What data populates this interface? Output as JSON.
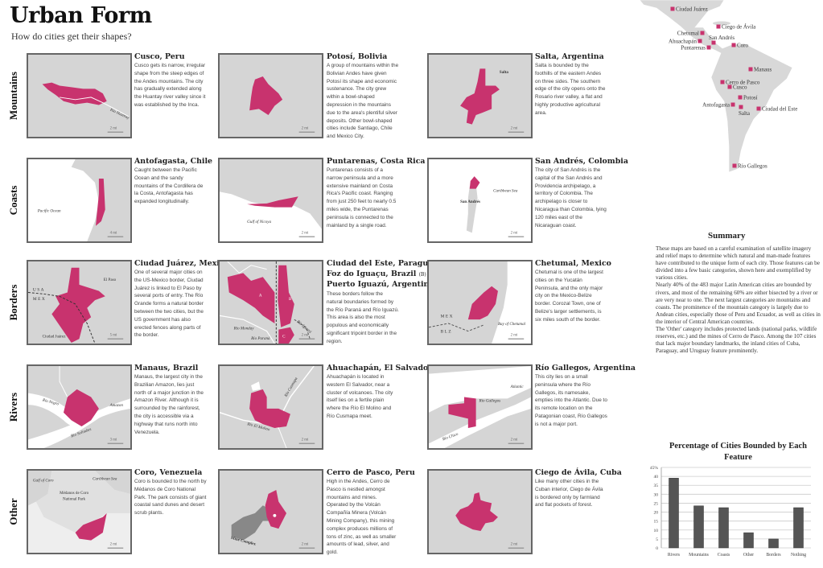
{
  "title": "Urban Form",
  "subtitle": "How do cities get their shapes?",
  "categories": [
    "Mountains",
    "Coasts",
    "Borders",
    "Rivers",
    "Other"
  ],
  "colors": {
    "city": "#c8336e",
    "land": "#d5d5d5",
    "water": "#ffffff",
    "frame": "#666666",
    "bar": "#555555"
  },
  "cities": [
    {
      "name": "Cusco, Peru",
      "text": "Cusco gets its narrow, irregular shape from the steep edges of the Andes mountains.  The city has gradually extended along the Huantay river valley since it was established by the Inca.",
      "labels": [
        "Río Huantay"
      ],
      "scale": "2 mi"
    },
    {
      "name": "Potosí, Bolivia",
      "text": "A group of mountains within the Bolivian Andes have given Potosí its shape and economic sustenance.  The city grew within a bowl-shaped depression in the mountains due to the area's plentiful silver deposits. Other bowl-shaped cities include Santiago, Chile and Mexico City.",
      "labels": [],
      "scale": "2 mi"
    },
    {
      "name": "Salta, Argentina",
      "text": "Salta is bounded by the foothills of the eastern Andes on three sides.  The southern edge of the city opens onto the Rosario river valley, a flat and highly productive agricultural area.",
      "labels": [
        "Salta"
      ],
      "scale": "2 mi"
    },
    {
      "name": "Antofagasta, Chile",
      "text": "Caught between the Pacific Ocean and the sandy mountains of the Cordillera de la Costa, Antofagasta has expanded longitudinally.",
      "labels": [
        "Pacific Ocean"
      ],
      "scale": "4 mi"
    },
    {
      "name": "Puntarenas, Costa Rica",
      "text": "Puntarenas consists of a narrow peninsula and a more extensive mainland on Costa Rica's Pacific coast.  Ranging from just 250 feet to nearly 0.5 miles wide, the Puntarenas peninsula is connected to the mainland by a single road.",
      "labels": [
        "Gulf of Nicoya"
      ],
      "scale": "2 mi"
    },
    {
      "name": "San Andrés, Colombia",
      "text": "The city of San Andrés is the capital of the San Andrés and Providencia archipelago, a territory of Colombia.  The archipelago is closer to Nicaragua than Colombia, lying 120 miles east of the Nicaraguan coast.",
      "labels": [
        "Caribbean Sea",
        "San Andrés"
      ],
      "scale": "2 mi"
    },
    {
      "name": "Ciudad Juárez, Mexico",
      "text": "One of several major cities on the US-Mexico border, Ciudad Juárez is linked to El Paso by several ports of entry.  The Río Grande forms a natural border between the two cities, but the US government has also erected fences along parts of the border.",
      "labels": [
        "El Paso",
        "USA",
        "MEX",
        "Ciudad Juárez"
      ],
      "scale": "5 mi"
    },
    {
      "name": "Ciudad del Este, Paraguay",
      "tag": "(A)",
      "name2": "Foz do Iguaçu, Brazil",
      "tag2": "(B)",
      "name3": "Puerto Iguazú, Argentina",
      "tag3": "(C)",
      "text": "These borders follow the natural boundaries formed by the Río Paraná and Río Iguazú.  This area is also the most populous and economically significant tripoint border in the region.",
      "labels": [
        "A",
        "B",
        "C",
        "Río Monday",
        "Río Paraná",
        "Río Iguazú"
      ],
      "scale": "2 mi"
    },
    {
      "name": "Chetumal, Mexico",
      "text": "Chetumal is one of the largest cities on the Yucatán Peninsula, and the only major city on the Mexico-Belize border. Corozal Town, one of Belize's larger settlements, is six miles south of the border.",
      "labels": [
        "MEX",
        "BLZ",
        "Bay of Chetumal"
      ],
      "scale": "2 mi"
    },
    {
      "name": "Manaus, Brazil",
      "text": "Manaus, the largest city in the Brazilian Amazon, lies just north of a major junction in the Amazon River.  Although it is surrounded by the rainforest, the city is accessible via a highway that runs north into Venezuela.",
      "labels": [
        "Río Negro",
        "Amazon",
        "Río Solimões"
      ],
      "scale": "3 mi"
    },
    {
      "name": "Ahuachapán, El Salvador",
      "text": "Ahuachapán is located in western El Salvador, near a cluster of volcanoes. The city itself lies on a fertile plain where the Río El Molino and Río Cusmapa meet.",
      "labels": [
        "Río Cusmapa",
        "Río El Molino"
      ],
      "scale": "2 mi"
    },
    {
      "name": "Río Gallegos, Argentina",
      "text": "This city lies on a small peninsula where the Río Gallegos, its namesake, empties into the Atlantic. Due to its remote location on the Patagonian coast, Río Gallegos is not a major port.",
      "labels": [
        "Río Gallegos",
        "Atlantic",
        "Río Chico"
      ],
      "scale": "2 mi"
    },
    {
      "name": "Coro, Venezuela",
      "text": "Coro is bounded to the north by Médanos de Coro National Park.  The park consists of giant coastal sand dunes and desert scrub plants.",
      "labels": [
        "Gulf of Coro",
        "Caribbean Sea",
        "Médanos de Coro",
        "National Park"
      ],
      "scale": "2 mi"
    },
    {
      "name": "Cerro de Pasco, Peru",
      "text": "High in the Andes, Cerro de Pasco is nestled amongst mountains and mines.  Operated by the Volcán Compañía Minera (Volcán Mining Company), this mining complex produces millions of tons of zinc, as well as smaller amounts of lead, silver, and gold.",
      "labels": [
        "Mine Complex"
      ],
      "scale": "2 mi"
    },
    {
      "name": "Ciego de Ávila, Cuba",
      "text": "Like many other cities in the Cuban interior, Ciego de Ávila is bordered only by farmland and flat pockets of forest.",
      "labels": [],
      "scale": "2 mi"
    }
  ],
  "overview_map": {
    "markers": [
      "Ciudad Juárez",
      "Ciego de Ávila",
      "Chetumal",
      "Ahuachapán",
      "San Andrés",
      "Puntarenas",
      "Coro",
      "Manaus",
      "Cerro de Pasco",
      "Cusco",
      "Potosí",
      "Antofagasta",
      "Salta",
      "Ciudad del Este",
      "Río Gallegos"
    ]
  },
  "summary": {
    "title": "Summary",
    "paragraphs": [
      "These maps are based on a careful examination of satellite imagery and relief maps to determine which natural and man-made features have contributed to the unique form of each city.  Those features can be divided into a few basic categories, shown here and exemplified by various cities.",
      "Nearly 40% of the 483 major Latin American cities are bounded by rivers, and most of the remaining 60% are either bisected by a river or are very near to one.  The next largest categories are mountains and coasts.  The prominence of the mountain category is largely due to Andean cities, especially  those of Peru and Ecuador, as well as cities in the interior of Central American countries.",
      "The 'Other' category includes protected lands (national parks, wildlife reserves, etc.) and the mines of Cerro de Pasco.  Among the 107 cities that lack major boundary landmarks, the inland cities of Cuba, Paraguay, and Uruguay feature prominently."
    ]
  },
  "chart_data": {
    "type": "bar",
    "title": "Percentage of Cities Bounded by Each Feature",
    "categories": [
      "Rivers",
      "Mountains",
      "Coasts",
      "Other",
      "Borders",
      "Nothing"
    ],
    "values": [
      39,
      23.5,
      22.5,
      8.5,
      5,
      22.5
    ],
    "ylim": [
      0,
      45
    ],
    "yticks": [
      "0",
      "5",
      "10",
      "15",
      "20",
      "25",
      "30",
      "35",
      "40",
      "45%"
    ],
    "grid": true,
    "xlabel": "",
    "ylabel": ""
  }
}
